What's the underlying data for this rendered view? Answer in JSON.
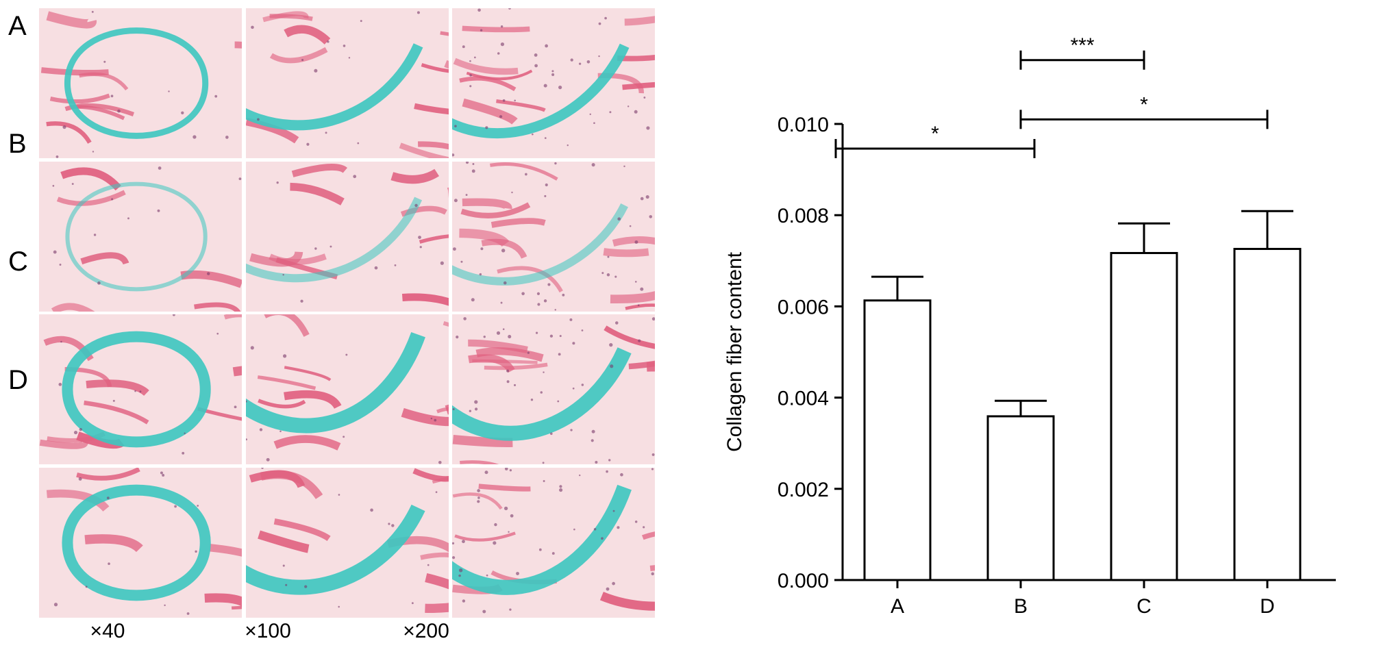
{
  "micrographs": {
    "row_labels": [
      "A",
      "B",
      "C",
      "D"
    ],
    "magnifications": [
      "×40",
      "×100",
      "×200"
    ],
    "colors": {
      "background": "#f7dfe2",
      "collagen": "#3cc7c0",
      "muscle": "#e06080"
    }
  },
  "chart_data": {
    "type": "bar",
    "categories": [
      "A",
      "B",
      "C",
      "D"
    ],
    "values": [
      0.00613,
      0.00359,
      0.00717,
      0.00726
    ],
    "errors": [
      0.00052,
      0.00034,
      0.00065,
      0.00083
    ],
    "title": "",
    "xlabel": "",
    "ylabel": "Collagen fiber content",
    "ylim": [
      0,
      0.01
    ],
    "yticks": [
      "0.000",
      "0.002",
      "0.004",
      "0.006",
      "0.008",
      "0.010"
    ],
    "bar_fill": "#ffffff",
    "bar_stroke": "#000000",
    "significance": [
      {
        "from": "A",
        "to": "B",
        "label": "*"
      },
      {
        "from": "B",
        "to": "C",
        "label": "***"
      },
      {
        "from": "B",
        "to": "D",
        "label": "*"
      }
    ]
  }
}
